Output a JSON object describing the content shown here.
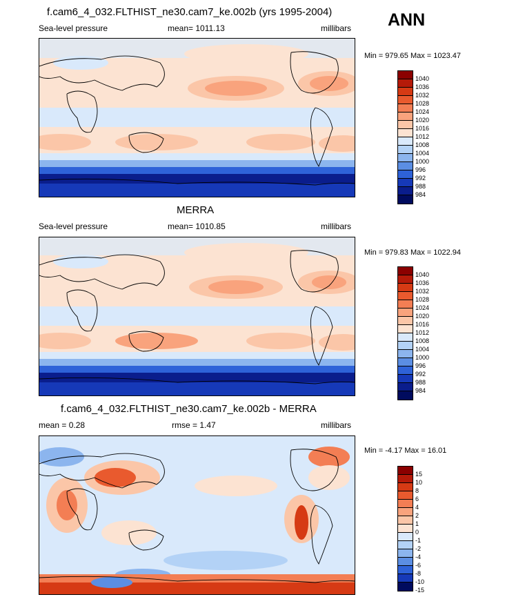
{
  "season": "ANN",
  "palette_slp": [
    "#8B0000",
    "#B51A09",
    "#D63A14",
    "#E95A2E",
    "#F37E54",
    "#F9A37D",
    "#FBC6A8",
    "#FCE3D2",
    "#FFFFFF",
    "#D9E9FB",
    "#B3D2F6",
    "#8CB5EE",
    "#5B8EE3",
    "#2E62D8",
    "#1639B8",
    "#0A1D8C",
    "#000B5E"
  ],
  "palette_diff": [
    "#8B0000",
    "#B51A09",
    "#D63A14",
    "#E95A2E",
    "#F37E54",
    "#F9A37D",
    "#FBC6A8",
    "#FCE3D2",
    "#FFFFFF",
    "#D9E9FB",
    "#B3D2F6",
    "#8CB5EE",
    "#5B8EE3",
    "#2E62D8",
    "#1639B8",
    "#000B5E"
  ],
  "panels": [
    {
      "title": "f.cam6_4_032.FLTHIST_ne30.cam7_ke.002b (yrs 1995-2004)",
      "left_label": "Sea-level pressure",
      "center_label": "mean= 1011.13",
      "right_label": "millibars",
      "minmax": "Min = 979.65 Max = 1023.47",
      "levels": [
        "1040",
        "1036",
        "1032",
        "1028",
        "1024",
        "1020",
        "1016",
        "1012",
        "1008",
        "1004",
        "1000",
        "996",
        "992",
        "988",
        "984"
      ]
    },
    {
      "title": "MERRA",
      "left_label": "Sea-level pressure",
      "center_label": "mean= 1010.85",
      "right_label": "millibars",
      "minmax": "Min = 979.83 Max = 1022.94",
      "levels": [
        "1040",
        "1036",
        "1032",
        "1028",
        "1024",
        "1020",
        "1016",
        "1012",
        "1008",
        "1004",
        "1000",
        "996",
        "992",
        "988",
        "984"
      ]
    },
    {
      "title": "f.cam6_4_032.FLTHIST_ne30.cam7_ke.002b - MERRA",
      "left_label": "mean =   0.28",
      "center_label": "rmse =   1.47",
      "right_label": "millibars",
      "minmax": "Min =  -4.17 Max =  16.01",
      "levels": [
        "15",
        "10",
        "8",
        "6",
        "4",
        "2",
        "1",
        "0",
        "-1",
        "-2",
        "-4",
        "-6",
        "-8",
        "-10",
        "-15"
      ]
    }
  ]
}
